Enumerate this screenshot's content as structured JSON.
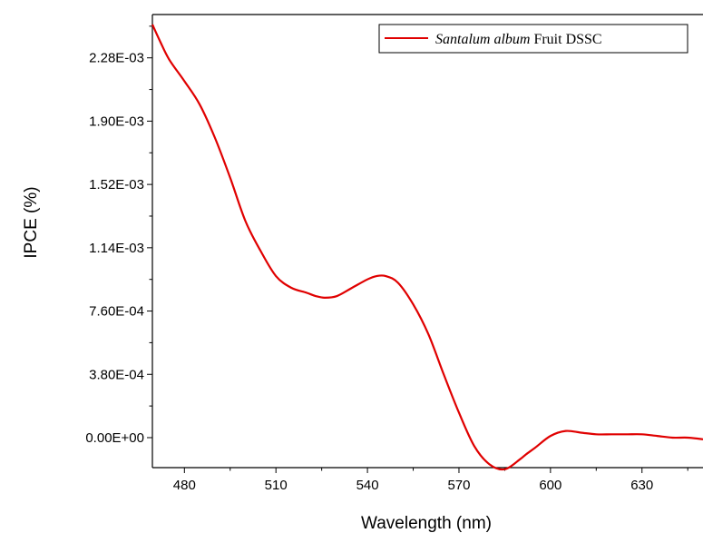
{
  "chart_data": {
    "type": "line",
    "xlabel": "Wavelength (nm)",
    "ylabel": "IPCE (%)",
    "xlim": [
      469.5,
      650
    ],
    "ylim": [
      -0.00018,
      0.00254
    ],
    "x_ticks": [
      480,
      510,
      540,
      570,
      600,
      630
    ],
    "x_tick_labels": [
      "480",
      "510",
      "540",
      "570",
      "600",
      "630"
    ],
    "y_ticks": [
      0,
      0.00038,
      0.00076,
      0.00114,
      0.00152,
      0.0019,
      0.00228
    ],
    "y_tick_labels": [
      "0.00E+00",
      "3.80E-04",
      "7.60E-04",
      "1.14E-03",
      "1.52E-03",
      "1.90E-03",
      "2.28E-03"
    ],
    "grid": false,
    "legend_position": "top-right",
    "series": [
      {
        "name_italic": "Santalum album",
        "name_rest": " Fruit DSSC",
        "color": "#e00000",
        "x": [
          469.5,
          472,
          475,
          480,
          485,
          490,
          495,
          500,
          505,
          510,
          515,
          520,
          523,
          526,
          530,
          535,
          540,
          543,
          546,
          550,
          555,
          560,
          565,
          570,
          575,
          580,
          585,
          590,
          592,
          595,
          600,
          605,
          610,
          615,
          620,
          625,
          630,
          635,
          640,
          645,
          650
        ],
        "y": [
          0.00248,
          0.00238,
          0.00227,
          0.00214,
          0.002,
          0.0018,
          0.00156,
          0.0013,
          0.00112,
          0.00097,
          0.0009,
          0.00087,
          0.00085,
          0.00084,
          0.00085,
          0.0009,
          0.00095,
          0.00097,
          0.00097,
          0.00093,
          0.0008,
          0.00062,
          0.00038,
          0.00015,
          -5e-05,
          -0.00016,
          -0.00019,
          -0.00013,
          -0.0001,
          -6e-05,
          1e-05,
          4e-05,
          3e-05,
          2e-05,
          2e-05,
          2e-05,
          2e-05,
          1e-05,
          0.0,
          0.0,
          -1e-05
        ]
      }
    ]
  }
}
